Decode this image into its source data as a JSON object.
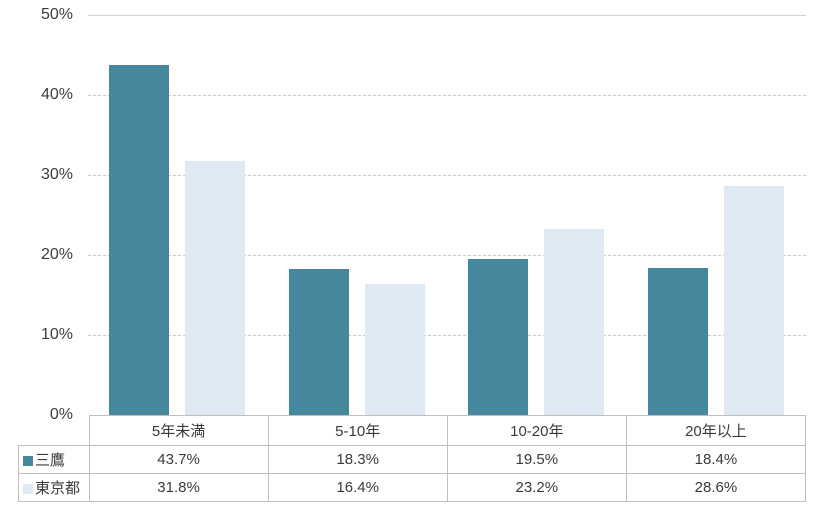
{
  "chart_data": {
    "type": "bar",
    "title": "",
    "xlabel": "",
    "ylabel": "",
    "categories": [
      "5年未満",
      "5-10年",
      "10-20年",
      "20年以上"
    ],
    "series": [
      {
        "name": "三鷹",
        "color": "#45889D",
        "values": [
          43.7,
          18.3,
          19.5,
          18.4
        ],
        "display": [
          "43.7%",
          "18.3%",
          "19.5%",
          "18.4%"
        ]
      },
      {
        "name": "東京都",
        "color": "#DEE9F4",
        "values": [
          31.8,
          16.4,
          23.2,
          28.6
        ],
        "display": [
          "31.8%",
          "16.4%",
          "23.2%",
          "28.6%"
        ]
      }
    ],
    "ylim": [
      0,
      50
    ],
    "ytick_step": 10,
    "yticks_desc": [
      "50%",
      "40%",
      "30%",
      "20%",
      "10%",
      "0%"
    ],
    "grid": "horizontal, dashed (top boundary solid)",
    "legend_position": "left column of data table",
    "colors": {
      "grid_dashed": "#c9c9c9",
      "grid_solid": "#d4d4d4",
      "table_border": "#bfbfbf",
      "text": "#3a3a3a",
      "background": "#ffffff"
    }
  }
}
